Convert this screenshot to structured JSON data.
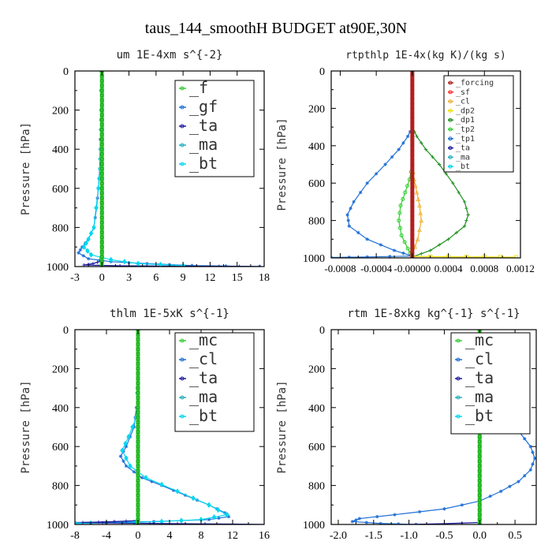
{
  "figure": {
    "title": "taus_144_smoothH  BUDGET at90E,30N"
  },
  "chart_data": [
    {
      "type": "line",
      "title": "um  1E-4xm s^{-2}",
      "ylabel": "Pressure [hPa]",
      "xlim": [
        -3,
        18
      ],
      "ylim": [
        1000,
        0
      ],
      "xticks": [
        "-3",
        "0",
        "3",
        "6",
        "9",
        "12",
        "15",
        "18"
      ],
      "yticks": [
        "0",
        "200",
        "400",
        "600",
        "800",
        "1000"
      ],
      "legend": [
        "_f",
        "_gf",
        "_ta",
        "_ma",
        "_bt"
      ],
      "series": [
        {
          "name": "_gf",
          "color": "#1e6fd6",
          "marker": "asterisk",
          "x": [
            -0.1,
            -0.1,
            -0.15,
            -0.2,
            -0.25,
            -0.4,
            -0.6,
            -0.9,
            -1.5,
            -2.2,
            -2.6,
            -1.5,
            1,
            5,
            10,
            17.5
          ],
          "y": [
            0,
            200,
            300,
            400,
            500,
            600,
            700,
            800,
            860,
            900,
            930,
            960,
            975,
            985,
            995,
            1000
          ]
        },
        {
          "name": "_ta",
          "color": "#1a1aa0",
          "marker": "plus",
          "x": [
            0,
            0,
            0,
            0,
            0,
            0,
            0,
            0,
            -1,
            -2,
            2,
            8,
            13,
            17.5
          ],
          "y": [
            0,
            200,
            400,
            600,
            800,
            900,
            950,
            970,
            985,
            992,
            996,
            998,
            999,
            1000
          ]
        },
        {
          "name": "_bt",
          "color": "#00d8f0",
          "marker": "diamond",
          "x": [
            -0.1,
            -0.1,
            -0.15,
            -0.2,
            -0.4,
            -0.9,
            -1.5,
            -2,
            -1.2,
            1,
            4,
            9
          ],
          "y": [
            0,
            200,
            400,
            500,
            600,
            800,
            860,
            900,
            940,
            965,
            985,
            995
          ]
        },
        {
          "name": "_f",
          "color": "#30d030",
          "marker": "circle",
          "width": 5,
          "x": [
            0,
            0
          ],
          "y": [
            0,
            1000
          ]
        }
      ]
    },
    {
      "type": "line",
      "title": "rtpthlp  1E-4x(kg K)/(kg s)",
      "ylabel": "Pressure [hPa]",
      "xlim": [
        -0.0009,
        0.0012
      ],
      "ylim": [
        1000,
        0
      ],
      "xticks": [
        "-0.0008",
        "-0.0004",
        "-0.00000",
        "0.0004",
        "0.0008",
        "0.0012"
      ],
      "yticks": [
        "0",
        "200",
        "400",
        "600",
        "800",
        "1000"
      ],
      "legend": [
        "_forcing",
        "_sf",
        "_cl",
        "_dp2",
        "_dp1",
        "_tp2",
        "_tp1",
        "_ta",
        "_ma",
        "_bt"
      ],
      "series": [
        {
          "name": "_tp1",
          "color": "#1e6fd6",
          "marker": "asterisk",
          "x": [
            0,
            -5e-05,
            -0.00015,
            -0.0003,
            -0.0005,
            -0.00065,
            -0.00072,
            -0.0007,
            -0.0005,
            -0.0002,
            0,
            -0.0005,
            -0.0009
          ],
          "y": [
            300,
            350,
            420,
            500,
            600,
            700,
            770,
            830,
            900,
            960,
            990,
            995,
            998
          ]
        },
        {
          "name": "_dp1",
          "color": "#209020",
          "marker": "plus",
          "x": [
            0,
            5e-05,
            0.00015,
            0.0003,
            0.00045,
            0.00058,
            0.00062,
            0.00058,
            0.0004,
            0.0002,
            0
          ],
          "y": [
            300,
            350,
            420,
            500,
            600,
            700,
            770,
            830,
            900,
            960,
            995
          ]
        },
        {
          "name": "_tp2",
          "color": "#30d030",
          "marker": "circle",
          "x": [
            0,
            -3e-05,
            -8e-05,
            -0.00013,
            -0.00015,
            -0.00012,
            -5e-05,
            0
          ],
          "y": [
            500,
            580,
            650,
            720,
            800,
            880,
            950,
            995
          ]
        },
        {
          "name": "_cl",
          "color": "#f0b030",
          "marker": "triangle",
          "x": [
            0,
            2e-05,
            5e-05,
            8e-05,
            0.0001,
            6e-05,
            0
          ],
          "y": [
            500,
            580,
            650,
            720,
            800,
            900,
            980
          ]
        },
        {
          "name": "_dp2",
          "color": "#f0e000",
          "marker": "square",
          "x": [
            0,
            0.0004,
            0.0008,
            0.00115
          ],
          "y": [
            992,
            994,
            995,
            996
          ]
        },
        {
          "name": "_sf",
          "color": "#ff3030",
          "marker": "asterisk",
          "width": 3,
          "x": [
            0,
            0
          ],
          "y": [
            0,
            1000
          ]
        },
        {
          "name": "_forcing",
          "color": "#b02020",
          "marker": "diamond",
          "width": 5,
          "x": [
            0,
            0
          ],
          "y": [
            0,
            1000
          ]
        }
      ]
    },
    {
      "type": "line",
      "title": "thlm  1E-5xK s^{-1}",
      "ylabel": "Pressure [hPa]",
      "xlim": [
        -8,
        16
      ],
      "ylim": [
        1000,
        0
      ],
      "xticks": [
        "-8",
        "-4",
        "0",
        "4",
        "8",
        "12",
        "16"
      ],
      "yticks": [
        "0",
        "200",
        "400",
        "600",
        "800",
        "1000"
      ],
      "legend": [
        "_mc",
        "_cl",
        "_ta",
        "_ma",
        "_bt"
      ],
      "series": [
        {
          "name": "_cl",
          "color": "#1e6fd6",
          "marker": "asterisk",
          "x": [
            0,
            0,
            -0.2,
            -0.5,
            -1.5,
            -2.2,
            -1.5,
            0.5,
            3,
            6,
            9,
            11,
            11.5,
            9,
            2,
            -8
          ],
          "y": [
            0,
            200,
            400,
            500,
            600,
            650,
            700,
            760,
            800,
            850,
            900,
            940,
            960,
            975,
            985,
            990
          ]
        },
        {
          "name": "_bt",
          "color": "#00d8f0",
          "marker": "diamond",
          "x": [
            0,
            0,
            -0.2,
            -1.2,
            -2,
            -1,
            1,
            5,
            9,
            11.3,
            8,
            3,
            -4,
            -8
          ],
          "y": [
            0,
            200,
            450,
            550,
            620,
            700,
            760,
            830,
            900,
            950,
            975,
            985,
            992,
            995
          ]
        },
        {
          "name": "_ta",
          "color": "#1a1aa0",
          "marker": "plus",
          "x": [
            0,
            0,
            0,
            0,
            -3,
            -7,
            -2,
            5,
            12,
            16
          ],
          "y": [
            0,
            400,
            800,
            980,
            985,
            990,
            993,
            996,
            998,
            1000
          ]
        },
        {
          "name": "_mc",
          "color": "#30d030",
          "marker": "circle",
          "width": 5,
          "x": [
            0,
            0
          ],
          "y": [
            0,
            1000
          ]
        }
      ]
    },
    {
      "type": "line",
      "title": "rtm  1E-8xkg kg^{-1} s^{-1}",
      "ylabel": "Pressure [hPa]",
      "xlim": [
        -2.1,
        0.8
      ],
      "ylim": [
        1000,
        0
      ],
      "xticks": [
        "-2.0",
        "-1.5",
        "-1.0",
        "-0.5",
        "0.0",
        "0.5"
      ],
      "yticks": [
        "0",
        "200",
        "400",
        "600",
        "800",
        "1000"
      ],
      "legend": [
        "_mc",
        "_cl",
        "_ta",
        "_ma",
        "_bt"
      ],
      "series": [
        {
          "name": "_cl",
          "color": "#1e6fd6",
          "marker": "asterisk",
          "x": [
            0,
            0,
            0.02,
            0.06,
            0.12,
            0.22,
            0.38,
            0.55,
            0.72,
            0.78,
            0.72,
            0.55,
            0.3,
            0,
            -0.5,
            -1.2,
            -1.7,
            -1.8,
            -1.4,
            -0.9
          ],
          "y": [
            0,
            150,
            200,
            250,
            300,
            380,
            450,
            520,
            600,
            660,
            720,
            780,
            830,
            880,
            920,
            950,
            970,
            985,
            995,
            1000
          ]
        },
        {
          "name": "_ta",
          "color": "#1a1aa0",
          "marker": "plus",
          "x": [
            0,
            0,
            0,
            -0.5,
            -1
          ],
          "y": [
            0,
            500,
            990,
            996,
            1000
          ]
        },
        {
          "name": "_mc",
          "color": "#30d030",
          "marker": "circle",
          "width": 5,
          "x": [
            0,
            0
          ],
          "y": [
            0,
            1000
          ]
        }
      ]
    }
  ]
}
